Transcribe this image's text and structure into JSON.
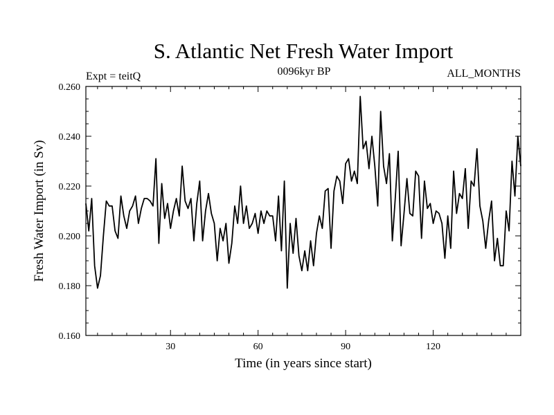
{
  "chart_data": {
    "type": "line",
    "title": "S. Atlantic Net Fresh Water Import",
    "subtitle_left": "Expt = teitQ",
    "subtitle_center": "0096kyr BP",
    "subtitle_right": "ALL_MONTHS",
    "xlabel": "Time (in years since start)",
    "ylabel": "Fresh Water Import (in Sv)",
    "xlim": [
      1,
      150
    ],
    "ylim": [
      0.16,
      0.26
    ],
    "xticks": [
      30,
      60,
      90,
      120
    ],
    "xtick_labels": [
      "30",
      "60",
      "90",
      "120"
    ],
    "yticks": [
      0.16,
      0.18,
      0.2,
      0.22,
      0.24,
      0.26
    ],
    "ytick_labels": [
      "0.160",
      "0.180",
      "0.200",
      "0.220",
      "0.240",
      "0.260"
    ],
    "grid": false,
    "series": [
      {
        "name": "Fresh Water Import",
        "color": "#000000",
        "x": [
          1,
          2,
          3,
          4,
          5,
          6,
          7,
          8,
          9,
          10,
          11,
          12,
          13,
          14,
          15,
          16,
          17,
          18,
          19,
          20,
          21,
          22,
          23,
          24,
          25,
          26,
          27,
          28,
          29,
          30,
          31,
          32,
          33,
          34,
          35,
          36,
          37,
          38,
          39,
          40,
          41,
          42,
          43,
          44,
          45,
          46,
          47,
          48,
          49,
          50,
          51,
          52,
          53,
          54,
          55,
          56,
          57,
          58,
          59,
          60,
          61,
          62,
          63,
          64,
          65,
          66,
          67,
          68,
          69,
          70,
          71,
          72,
          73,
          74,
          75,
          76,
          77,
          78,
          79,
          80,
          81,
          82,
          83,
          84,
          85,
          86,
          87,
          88,
          89,
          90,
          91,
          92,
          93,
          94,
          95,
          96,
          97,
          98,
          99,
          100,
          101,
          102,
          103,
          104,
          105,
          106,
          107,
          108,
          109,
          110,
          111,
          112,
          113,
          114,
          115,
          116,
          117,
          118,
          119,
          120,
          121,
          122,
          123,
          124,
          125,
          126,
          127,
          128,
          129,
          130,
          131,
          132,
          133,
          134,
          135,
          136,
          137,
          138,
          139,
          140,
          141,
          142,
          143,
          144,
          145,
          146,
          147,
          148,
          149,
          150
        ],
        "values": [
          0.213,
          0.202,
          0.215,
          0.188,
          0.179,
          0.184,
          0.2,
          0.214,
          0.212,
          0.212,
          0.202,
          0.199,
          0.216,
          0.208,
          0.203,
          0.21,
          0.212,
          0.216,
          0.205,
          0.211,
          0.215,
          0.215,
          0.214,
          0.212,
          0.231,
          0.197,
          0.221,
          0.207,
          0.213,
          0.203,
          0.21,
          0.215,
          0.208,
          0.228,
          0.214,
          0.211,
          0.215,
          0.198,
          0.213,
          0.222,
          0.198,
          0.21,
          0.217,
          0.209,
          0.205,
          0.19,
          0.203,
          0.198,
          0.205,
          0.189,
          0.197,
          0.212,
          0.205,
          0.22,
          0.205,
          0.212,
          0.203,
          0.205,
          0.209,
          0.201,
          0.21,
          0.205,
          0.21,
          0.208,
          0.208,
          0.198,
          0.216,
          0.194,
          0.222,
          0.179,
          0.205,
          0.193,
          0.207,
          0.192,
          0.186,
          0.194,
          0.186,
          0.198,
          0.188,
          0.201,
          0.208,
          0.203,
          0.218,
          0.219,
          0.195,
          0.218,
          0.224,
          0.222,
          0.213,
          0.229,
          0.231,
          0.222,
          0.226,
          0.221,
          0.256,
          0.235,
          0.238,
          0.227,
          0.24,
          0.228,
          0.212,
          0.25,
          0.228,
          0.221,
          0.233,
          0.198,
          0.215,
          0.234,
          0.196,
          0.209,
          0.223,
          0.209,
          0.208,
          0.226,
          0.224,
          0.199,
          0.222,
          0.211,
          0.213,
          0.205,
          0.21,
          0.209,
          0.205,
          0.191,
          0.208,
          0.195,
          0.226,
          0.209,
          0.217,
          0.215,
          0.227,
          0.203,
          0.222,
          0.22,
          0.235,
          0.212,
          0.206,
          0.195,
          0.206,
          0.214,
          0.19,
          0.199,
          0.188,
          0.188,
          0.21,
          0.202,
          0.23,
          0.216,
          0.24,
          0.228
        ]
      }
    ]
  }
}
